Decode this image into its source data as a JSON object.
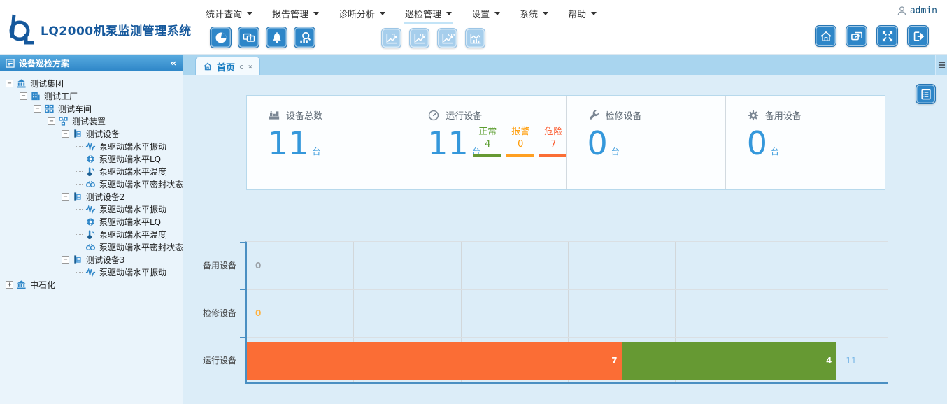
{
  "app": {
    "title": "LQ2000机泵监测管理系统",
    "user": "admin"
  },
  "menu": {
    "active_index": 3,
    "items": [
      {
        "label": "统计查询"
      },
      {
        "label": "报告管理"
      },
      {
        "label": "诊断分析"
      },
      {
        "label": "巡检管理"
      },
      {
        "label": "设置"
      },
      {
        "label": "系统"
      },
      {
        "label": "帮助"
      }
    ]
  },
  "toolbar": {
    "primary_icons": [
      {
        "name": "pie-chart",
        "icon": "pie"
      },
      {
        "name": "monitor-alert",
        "icon": "monitor"
      },
      {
        "name": "alarm-bell",
        "icon": "bell"
      },
      {
        "name": "search-statistics",
        "icon": "search"
      }
    ],
    "trend_icons": [
      {
        "name": "temperature-trend",
        "icon": "trend",
        "tag": "℃"
      },
      {
        "name": "lq-trend",
        "icon": "trend",
        "tag": "LQ"
      },
      {
        "name": "vibration-trend",
        "icon": "trend",
        "tag": "VIB"
      },
      {
        "name": "histogram-trend",
        "icon": "trendbar",
        "tag": ""
      }
    ],
    "window_icons": [
      {
        "name": "home",
        "icon": "home"
      },
      {
        "name": "restore-window",
        "icon": "restore"
      },
      {
        "name": "fullscreen",
        "icon": "fullscreen"
      },
      {
        "name": "logout",
        "icon": "logout"
      }
    ]
  },
  "sidebar": {
    "title": "设备巡检方案",
    "collapse_glyph": "«",
    "tree": [
      {
        "label": "测试集团",
        "level": 0,
        "icon": "bank",
        "expander": "minus"
      },
      {
        "label": "测试工厂",
        "level": 1,
        "icon": "factory",
        "expander": "minus"
      },
      {
        "label": "测试车间",
        "level": 2,
        "icon": "workshop",
        "expander": "minus"
      },
      {
        "label": "测试装置",
        "level": 3,
        "icon": "unit",
        "expander": "minus"
      },
      {
        "label": "测试设备",
        "level": 4,
        "icon": "device",
        "expander": "minus"
      },
      {
        "label": "泵驱动端水平振动",
        "level": 5,
        "icon": "vibration",
        "expander": null
      },
      {
        "label": "泵驱动端水平LQ",
        "level": 5,
        "icon": "lq",
        "expander": null
      },
      {
        "label": "泵驱动端水平温度",
        "level": 5,
        "icon": "temperature",
        "expander": null
      },
      {
        "label": "泵驱动端水平密封状态",
        "level": 5,
        "icon": "seal",
        "expander": null
      },
      {
        "label": "测试设备2",
        "level": 4,
        "icon": "device",
        "expander": "minus"
      },
      {
        "label": "泵驱动端水平振动",
        "level": 5,
        "icon": "vibration",
        "expander": null
      },
      {
        "label": "泵驱动端水平LQ",
        "level": 5,
        "icon": "lq",
        "expander": null
      },
      {
        "label": "泵驱动端水平温度",
        "level": 5,
        "icon": "temperature",
        "expander": null
      },
      {
        "label": "泵驱动端水平密封状态",
        "level": 5,
        "icon": "seal",
        "expander": null
      },
      {
        "label": "测试设备3",
        "level": 4,
        "icon": "device",
        "expander": "minus"
      },
      {
        "label": "泵驱动端水平振动",
        "level": 5,
        "icon": "vibration",
        "expander": null
      },
      {
        "label": "中石化",
        "level": 0,
        "icon": "bank",
        "expander": "plus"
      }
    ]
  },
  "tabs": {
    "items": [
      {
        "label": "首页"
      }
    ]
  },
  "stats": {
    "cards": [
      {
        "icon": "factory-gray",
        "label": "设备总数",
        "value": "11",
        "unit": "台"
      },
      {
        "icon": "gauge",
        "label": "运行设备",
        "value": "11",
        "unit": "台",
        "substats": [
          {
            "label": "正常",
            "value": "4",
            "color": "#5b9d2f",
            "bar_color": "#669933"
          },
          {
            "label": "报警",
            "value": "0",
            "color": "#ff9900",
            "bar_color": "#ffa022"
          },
          {
            "label": "危险",
            "value": "7",
            "color": "#fb5a2d",
            "bar_color": "#fb6e35"
          }
        ]
      },
      {
        "icon": "wrench",
        "label": "检修设备",
        "value": "0",
        "unit": "台"
      },
      {
        "icon": "gear",
        "label": "备用设备",
        "value": "0",
        "unit": "台"
      }
    ]
  },
  "chart_data": {
    "type": "bar",
    "orientation": "horizontal",
    "order": "top-to-bottom",
    "categories": [
      "备用设备",
      "检修设备",
      "运行设备"
    ],
    "rows": [
      {
        "category": "备用设备",
        "segments": [],
        "value_label": "0",
        "value_label_color": "#9aa0a6"
      },
      {
        "category": "检修设备",
        "segments": [],
        "value_label": "0",
        "value_label_color": "#ffb13d"
      },
      {
        "category": "运行设备",
        "segments": [
          {
            "name": "危险",
            "value": 7,
            "color": "#fb6d35",
            "label": "7"
          },
          {
            "name": "正常",
            "value": 4,
            "color": "#669933",
            "label": "4"
          }
        ],
        "total": 11,
        "total_label": "11",
        "total_label_color": "#7db9e8"
      }
    ],
    "xlim": [
      0,
      12
    ],
    "grid_interval": 2,
    "grid": true,
    "axis_color": "#4a8fc2",
    "title": "",
    "xlabel": "",
    "ylabel": ""
  },
  "colors": {
    "accent_blue": "#2e86c8",
    "number_blue": "#3598db",
    "normal_green": "#669933",
    "alarm_orange": "#ff9900",
    "danger_orange": "#fb6e35",
    "panel_border": "#b7d9ec"
  }
}
